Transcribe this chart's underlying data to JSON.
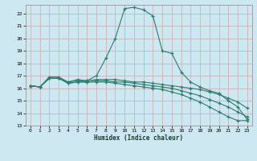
{
  "xlabel": "Humidex (Indice chaleur)",
  "bg_color": "#cde8f0",
  "grid_color": "#c8aab0",
  "line_color": "#2e7d6e",
  "xlim": [
    -0.5,
    23.5
  ],
  "ylim": [
    13,
    22.7
  ],
  "yticks": [
    13,
    14,
    15,
    16,
    17,
    18,
    19,
    20,
    21,
    22
  ],
  "xticks": [
    0,
    1,
    2,
    3,
    4,
    5,
    6,
    7,
    8,
    9,
    10,
    11,
    12,
    13,
    14,
    15,
    16,
    17,
    18,
    19,
    20,
    21,
    22,
    23
  ],
  "series": [
    {
      "x": [
        0,
        1,
        2,
        3,
        4,
        5,
        6,
        7,
        8,
        9,
        10,
        11,
        12,
        13,
        14,
        15,
        16,
        17,
        18,
        19,
        20,
        21,
        22,
        23
      ],
      "y": [
        16.2,
        16.1,
        16.9,
        16.9,
        16.5,
        16.7,
        16.6,
        17.0,
        18.4,
        20.0,
        22.4,
        22.5,
        22.3,
        21.8,
        19.0,
        18.8,
        17.3,
        16.5,
        16.1,
        15.8,
        15.6,
        15.0,
        14.5,
        13.5
      ]
    },
    {
      "x": [
        0,
        1,
        2,
        3,
        4,
        5,
        6,
        7,
        8,
        9,
        10,
        11,
        12,
        13,
        14,
        15,
        16,
        17,
        18,
        19,
        20,
        21,
        22,
        23
      ],
      "y": [
        16.2,
        16.1,
        16.8,
        16.8,
        16.5,
        16.6,
        16.6,
        16.7,
        16.7,
        16.7,
        16.6,
        16.5,
        16.5,
        16.4,
        16.3,
        16.2,
        16.1,
        16.0,
        15.9,
        15.7,
        15.5,
        15.2,
        14.9,
        14.4
      ]
    },
    {
      "x": [
        0,
        1,
        2,
        3,
        4,
        5,
        6,
        7,
        8,
        9,
        10,
        11,
        12,
        13,
        14,
        15,
        16,
        17,
        18,
        19,
        20,
        21,
        22,
        23
      ],
      "y": [
        16.2,
        16.1,
        16.8,
        16.8,
        16.4,
        16.5,
        16.5,
        16.6,
        16.6,
        16.5,
        16.5,
        16.4,
        16.3,
        16.2,
        16.1,
        16.0,
        15.8,
        15.6,
        15.4,
        15.1,
        14.8,
        14.5,
        14.1,
        13.7
      ]
    },
    {
      "x": [
        0,
        1,
        2,
        3,
        4,
        5,
        6,
        7,
        8,
        9,
        10,
        11,
        12,
        13,
        14,
        15,
        16,
        17,
        18,
        19,
        20,
        21,
        22,
        23
      ],
      "y": [
        16.2,
        16.1,
        16.8,
        16.8,
        16.4,
        16.5,
        16.5,
        16.5,
        16.5,
        16.4,
        16.3,
        16.2,
        16.1,
        16.0,
        15.9,
        15.7,
        15.5,
        15.2,
        14.9,
        14.5,
        14.1,
        13.7,
        13.4,
        13.4
      ]
    }
  ]
}
